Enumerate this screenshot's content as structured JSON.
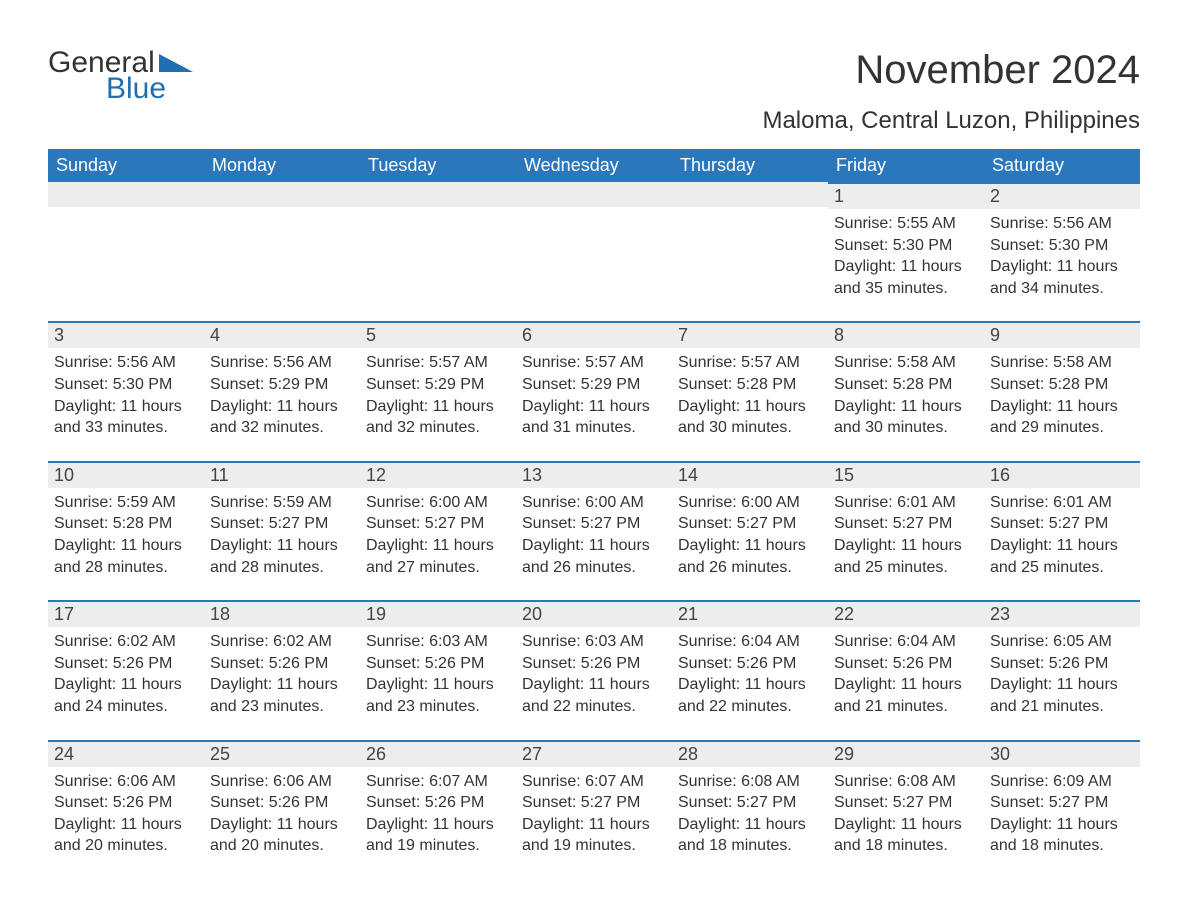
{
  "logo": {
    "text_general": "General",
    "text_blue": "Blue",
    "shape_color": "#1f6fb2"
  },
  "title": "November 2024",
  "location": "Maloma, Central Luzon, Philippines",
  "colors": {
    "header_bg": "#2a77bb",
    "header_text": "#ffffff",
    "daynum_bg": "#ededed",
    "daynum_border": "#2a77bb",
    "text": "#333333",
    "background": "#ffffff"
  },
  "weekdays": [
    "Sunday",
    "Monday",
    "Tuesday",
    "Wednesday",
    "Thursday",
    "Friday",
    "Saturday"
  ],
  "weeks": [
    [
      null,
      null,
      null,
      null,
      null,
      {
        "n": "1",
        "sunrise": "Sunrise: 5:55 AM",
        "sunset": "Sunset: 5:30 PM",
        "daylight": "Daylight: 11 hours and 35 minutes."
      },
      {
        "n": "2",
        "sunrise": "Sunrise: 5:56 AM",
        "sunset": "Sunset: 5:30 PM",
        "daylight": "Daylight: 11 hours and 34 minutes."
      }
    ],
    [
      {
        "n": "3",
        "sunrise": "Sunrise: 5:56 AM",
        "sunset": "Sunset: 5:30 PM",
        "daylight": "Daylight: 11 hours and 33 minutes."
      },
      {
        "n": "4",
        "sunrise": "Sunrise: 5:56 AM",
        "sunset": "Sunset: 5:29 PM",
        "daylight": "Daylight: 11 hours and 32 minutes."
      },
      {
        "n": "5",
        "sunrise": "Sunrise: 5:57 AM",
        "sunset": "Sunset: 5:29 PM",
        "daylight": "Daylight: 11 hours and 32 minutes."
      },
      {
        "n": "6",
        "sunrise": "Sunrise: 5:57 AM",
        "sunset": "Sunset: 5:29 PM",
        "daylight": "Daylight: 11 hours and 31 minutes."
      },
      {
        "n": "7",
        "sunrise": "Sunrise: 5:57 AM",
        "sunset": "Sunset: 5:28 PM",
        "daylight": "Daylight: 11 hours and 30 minutes."
      },
      {
        "n": "8",
        "sunrise": "Sunrise: 5:58 AM",
        "sunset": "Sunset: 5:28 PM",
        "daylight": "Daylight: 11 hours and 30 minutes."
      },
      {
        "n": "9",
        "sunrise": "Sunrise: 5:58 AM",
        "sunset": "Sunset: 5:28 PM",
        "daylight": "Daylight: 11 hours and 29 minutes."
      }
    ],
    [
      {
        "n": "10",
        "sunrise": "Sunrise: 5:59 AM",
        "sunset": "Sunset: 5:28 PM",
        "daylight": "Daylight: 11 hours and 28 minutes."
      },
      {
        "n": "11",
        "sunrise": "Sunrise: 5:59 AM",
        "sunset": "Sunset: 5:27 PM",
        "daylight": "Daylight: 11 hours and 28 minutes."
      },
      {
        "n": "12",
        "sunrise": "Sunrise: 6:00 AM",
        "sunset": "Sunset: 5:27 PM",
        "daylight": "Daylight: 11 hours and 27 minutes."
      },
      {
        "n": "13",
        "sunrise": "Sunrise: 6:00 AM",
        "sunset": "Sunset: 5:27 PM",
        "daylight": "Daylight: 11 hours and 26 minutes."
      },
      {
        "n": "14",
        "sunrise": "Sunrise: 6:00 AM",
        "sunset": "Sunset: 5:27 PM",
        "daylight": "Daylight: 11 hours and 26 minutes."
      },
      {
        "n": "15",
        "sunrise": "Sunrise: 6:01 AM",
        "sunset": "Sunset: 5:27 PM",
        "daylight": "Daylight: 11 hours and 25 minutes."
      },
      {
        "n": "16",
        "sunrise": "Sunrise: 6:01 AM",
        "sunset": "Sunset: 5:27 PM",
        "daylight": "Daylight: 11 hours and 25 minutes."
      }
    ],
    [
      {
        "n": "17",
        "sunrise": "Sunrise: 6:02 AM",
        "sunset": "Sunset: 5:26 PM",
        "daylight": "Daylight: 11 hours and 24 minutes."
      },
      {
        "n": "18",
        "sunrise": "Sunrise: 6:02 AM",
        "sunset": "Sunset: 5:26 PM",
        "daylight": "Daylight: 11 hours and 23 minutes."
      },
      {
        "n": "19",
        "sunrise": "Sunrise: 6:03 AM",
        "sunset": "Sunset: 5:26 PM",
        "daylight": "Daylight: 11 hours and 23 minutes."
      },
      {
        "n": "20",
        "sunrise": "Sunrise: 6:03 AM",
        "sunset": "Sunset: 5:26 PM",
        "daylight": "Daylight: 11 hours and 22 minutes."
      },
      {
        "n": "21",
        "sunrise": "Sunrise: 6:04 AM",
        "sunset": "Sunset: 5:26 PM",
        "daylight": "Daylight: 11 hours and 22 minutes."
      },
      {
        "n": "22",
        "sunrise": "Sunrise: 6:04 AM",
        "sunset": "Sunset: 5:26 PM",
        "daylight": "Daylight: 11 hours and 21 minutes."
      },
      {
        "n": "23",
        "sunrise": "Sunrise: 6:05 AM",
        "sunset": "Sunset: 5:26 PM",
        "daylight": "Daylight: 11 hours and 21 minutes."
      }
    ],
    [
      {
        "n": "24",
        "sunrise": "Sunrise: 6:06 AM",
        "sunset": "Sunset: 5:26 PM",
        "daylight": "Daylight: 11 hours and 20 minutes."
      },
      {
        "n": "25",
        "sunrise": "Sunrise: 6:06 AM",
        "sunset": "Sunset: 5:26 PM",
        "daylight": "Daylight: 11 hours and 20 minutes."
      },
      {
        "n": "26",
        "sunrise": "Sunrise: 6:07 AM",
        "sunset": "Sunset: 5:26 PM",
        "daylight": "Daylight: 11 hours and 19 minutes."
      },
      {
        "n": "27",
        "sunrise": "Sunrise: 6:07 AM",
        "sunset": "Sunset: 5:27 PM",
        "daylight": "Daylight: 11 hours and 19 minutes."
      },
      {
        "n": "28",
        "sunrise": "Sunrise: 6:08 AM",
        "sunset": "Sunset: 5:27 PM",
        "daylight": "Daylight: 11 hours and 18 minutes."
      },
      {
        "n": "29",
        "sunrise": "Sunrise: 6:08 AM",
        "sunset": "Sunset: 5:27 PM",
        "daylight": "Daylight: 11 hours and 18 minutes."
      },
      {
        "n": "30",
        "sunrise": "Sunrise: 6:09 AM",
        "sunset": "Sunset: 5:27 PM",
        "daylight": "Daylight: 11 hours and 18 minutes."
      }
    ]
  ]
}
